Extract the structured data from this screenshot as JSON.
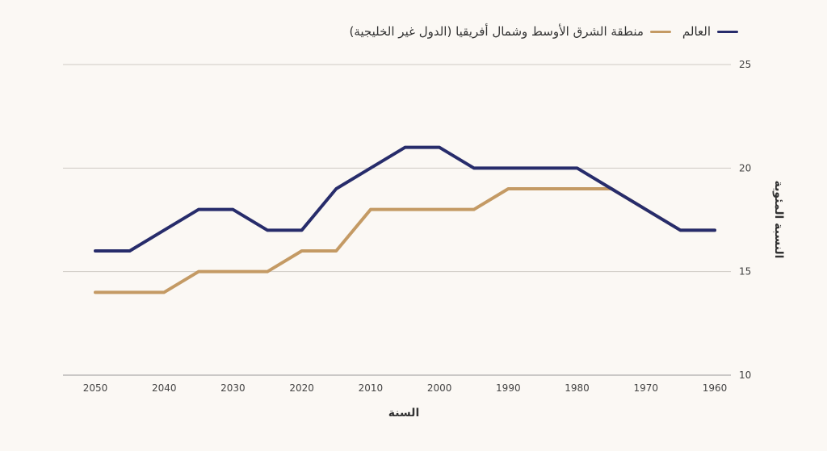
{
  "chart_data": {
    "type": "line",
    "xlabel": "السنة",
    "ylabel": "النسبة المئوية",
    "x": [
      1960,
      1965,
      1970,
      1975,
      1980,
      1985,
      1990,
      1995,
      2000,
      2005,
      2010,
      2015,
      2020,
      2025,
      2030,
      2035,
      2040,
      2045,
      2050
    ],
    "x_ticks": [
      "1960",
      "1970",
      "1980",
      "1990",
      "2000",
      "2010",
      "2020",
      "2030",
      "2040",
      "2050"
    ],
    "x_reversed": true,
    "ylim": [
      10,
      25
    ],
    "y_ticks": [
      10,
      15,
      20,
      25
    ],
    "y_axis_side": "right",
    "grid": true,
    "legend_position": "top-right",
    "series": [
      {
        "name": "العالم",
        "color": "#272c6b",
        "values": [
          17,
          17,
          18,
          19,
          20,
          20,
          20,
          20,
          21,
          21,
          20,
          19,
          17,
          17,
          18,
          18,
          17,
          16,
          16
        ]
      },
      {
        "name": "منطقة الشرق الأوسط وشمال أفريقيا (الدول غير الخليجية)",
        "color": "#c49a64",
        "values": [
          17,
          17,
          18,
          19,
          19,
          19,
          19,
          18,
          18,
          18,
          18,
          16,
          16,
          15,
          15,
          15,
          14,
          14,
          14
        ]
      }
    ]
  }
}
